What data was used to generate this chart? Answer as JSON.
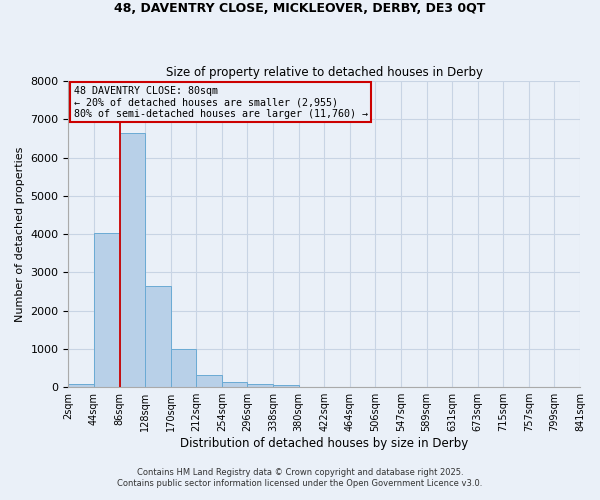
{
  "title1": "48, DAVENTRY CLOSE, MICKLEOVER, DERBY, DE3 0QT",
  "title2": "Size of property relative to detached houses in Derby",
  "xlabel": "Distribution of detached houses by size in Derby",
  "ylabel": "Number of detached properties",
  "bar_values": [
    70,
    4020,
    6650,
    2650,
    1000,
    305,
    120,
    80,
    60,
    10,
    0,
    0,
    0,
    0,
    0,
    0,
    0,
    0,
    0,
    0
  ],
  "bar_labels": [
    "2sqm",
    "44sqm",
    "86sqm",
    "128sqm",
    "170sqm",
    "212sqm",
    "254sqm",
    "296sqm",
    "338sqm",
    "380sqm",
    "422sqm",
    "464sqm",
    "506sqm",
    "547sqm",
    "589sqm",
    "631sqm",
    "673sqm",
    "715sqm",
    "757sqm",
    "799sqm",
    "841sqm"
  ],
  "bar_color": "#b8d0e8",
  "bar_edge_color": "#6aaad4",
  "grid_color": "#c8d4e4",
  "background_color": "#eaf0f8",
  "vline_x_index": 1.5,
  "vline_color": "#cc0000",
  "annotation_text": "48 DAVENTRY CLOSE: 80sqm\n← 20% of detached houses are smaller (2,955)\n80% of semi-detached houses are larger (11,760) →",
  "annotation_box_color": "#cc0000",
  "ylim": [
    0,
    8000
  ],
  "yticks": [
    0,
    1000,
    2000,
    3000,
    4000,
    5000,
    6000,
    7000,
    8000
  ],
  "footer1": "Contains HM Land Registry data © Crown copyright and database right 2025.",
  "footer2": "Contains public sector information licensed under the Open Government Licence v3.0."
}
